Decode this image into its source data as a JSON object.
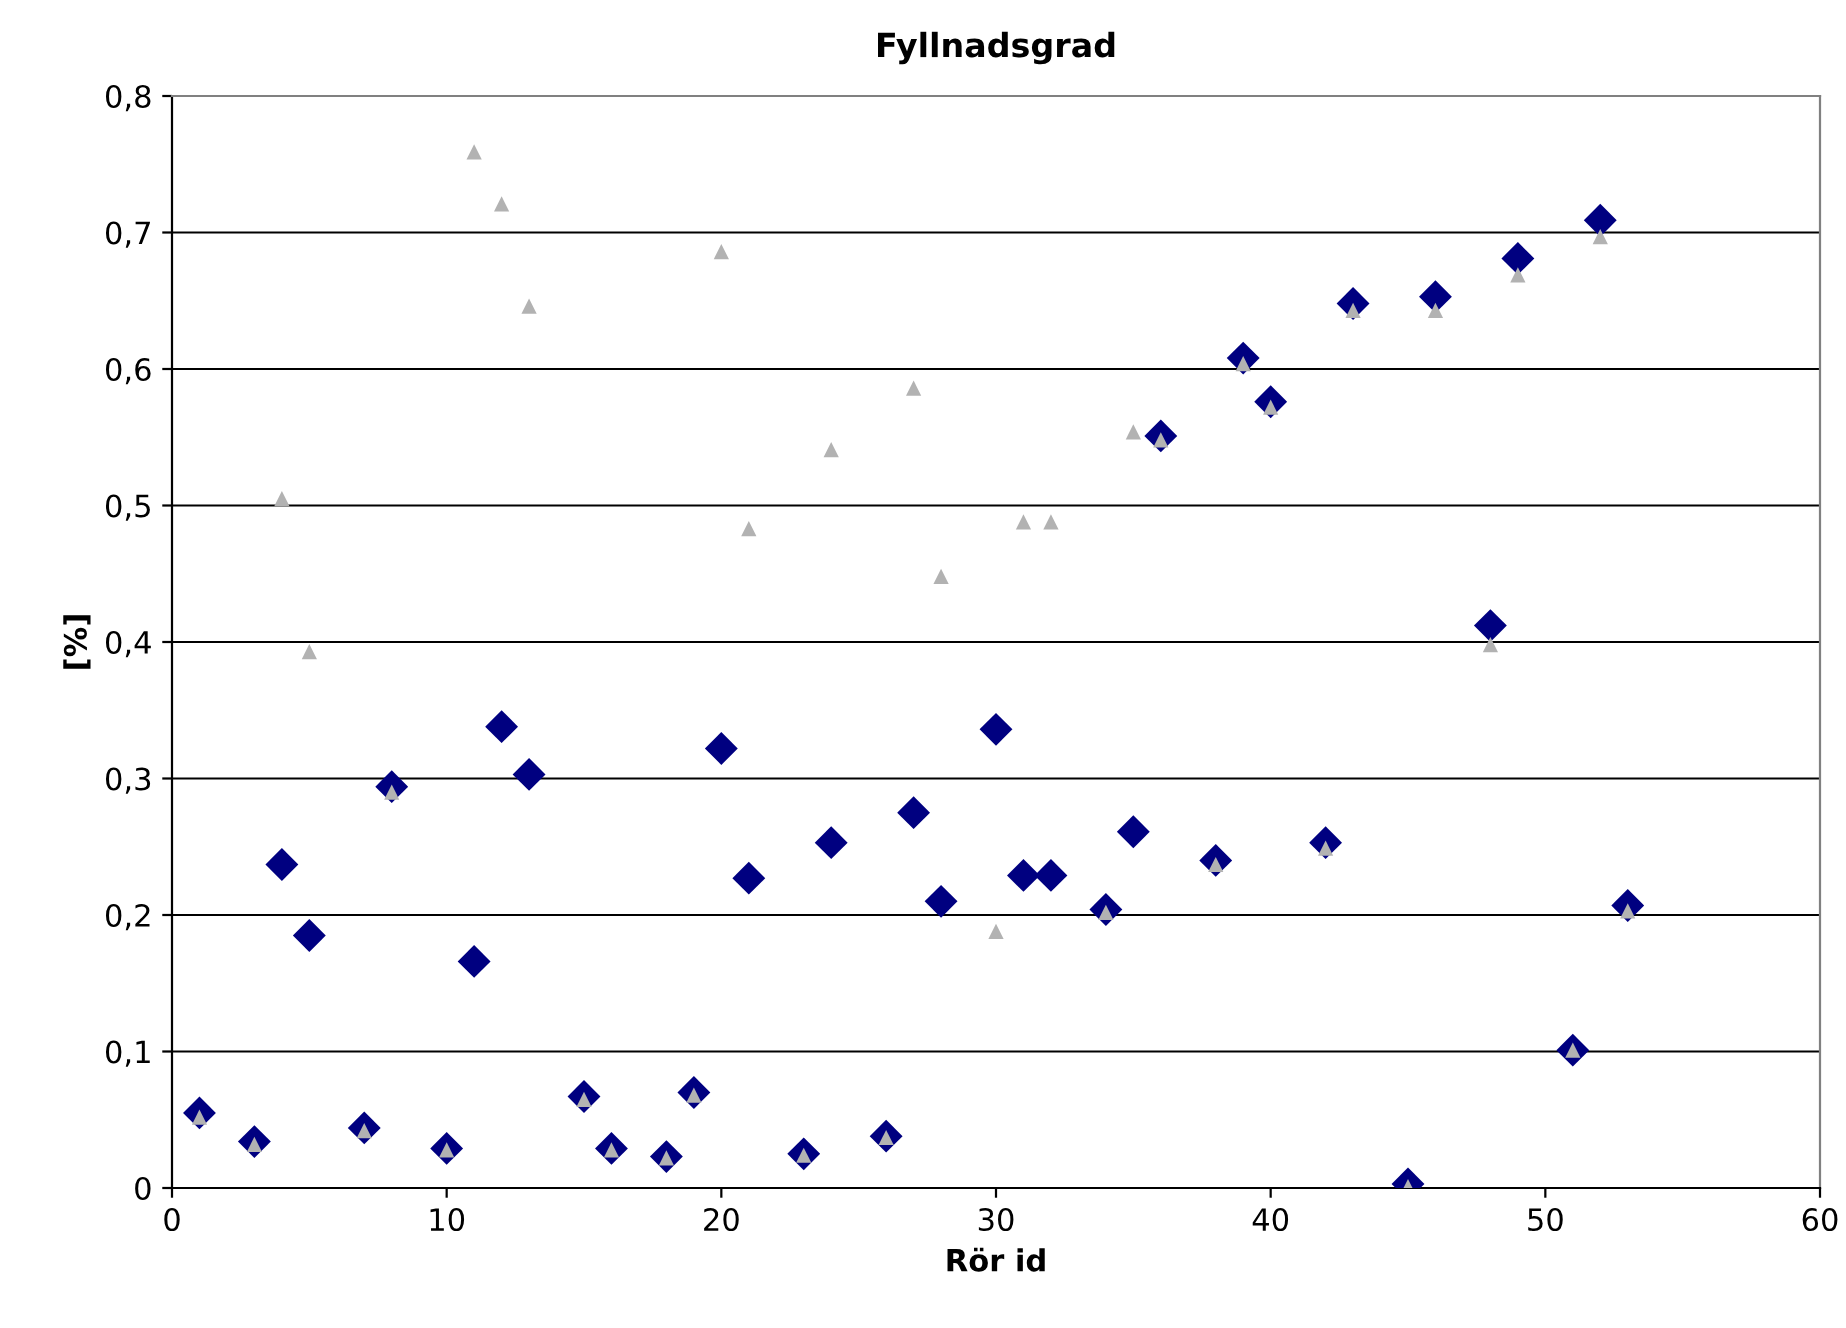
{
  "chart_data": {
    "type": "scatter",
    "title": "Fyllnadsgrad",
    "xlabel": "Rör id",
    "ylabel": "[%]",
    "xlim": [
      0,
      60
    ],
    "xticks": [
      0,
      10,
      20,
      30,
      40,
      50,
      60
    ],
    "ylim": [
      0,
      0.8
    ],
    "yticks": [
      {
        "value": 0,
        "label": "0"
      },
      {
        "value": 0.1,
        "label": "0,1"
      },
      {
        "value": 0.2,
        "label": "0,2"
      },
      {
        "value": 0.3,
        "label": "0,3"
      },
      {
        "value": 0.4,
        "label": "0,4"
      },
      {
        "value": 0.5,
        "label": "0,5"
      },
      {
        "value": 0.6,
        "label": "0,6"
      },
      {
        "value": 0.7,
        "label": "0,7"
      },
      {
        "value": 0.8,
        "label": "0,8"
      }
    ],
    "grid": "y",
    "legend": false,
    "x": [
      1,
      3,
      4,
      5,
      7,
      8,
      10,
      11,
      12,
      13,
      15,
      16,
      18,
      19,
      20,
      21,
      23,
      24,
      26,
      27,
      28,
      30,
      31,
      32,
      34,
      35,
      36,
      38,
      39,
      40,
      42,
      43,
      45,
      46,
      48,
      49,
      51,
      52,
      53
    ],
    "series": [
      {
        "color": "#000080",
        "marker": "diamond",
        "values": [
          0.055,
          0.034,
          0.237,
          0.185,
          0.044,
          0.294,
          0.029,
          0.166,
          0.338,
          0.303,
          0.067,
          0.029,
          0.023,
          0.07,
          0.322,
          0.227,
          0.025,
          0.253,
          0.038,
          0.275,
          0.21,
          0.336,
          0.229,
          0.229,
          0.204,
          0.261,
          0.551,
          0.24,
          0.608,
          0.576,
          0.253,
          0.648,
          0.003,
          0.653,
          0.412,
          0.681,
          0.101,
          0.709,
          0.207
        ]
      },
      {
        "color": "#b2b2b2",
        "marker": "triangle",
        "values": [
          0.052,
          0.032,
          0.505,
          0.393,
          0.042,
          0.29,
          0.028,
          0.759,
          0.721,
          0.646,
          0.065,
          0.028,
          0.022,
          0.068,
          0.686,
          0.483,
          0.024,
          0.541,
          0.037,
          0.586,
          0.448,
          0.188,
          0.488,
          0.488,
          0.202,
          0.554,
          0.548,
          0.237,
          0.604,
          0.572,
          0.249,
          0.643,
          0.001,
          0.643,
          0.398,
          0.669,
          0.101,
          0.697,
          0.203
        ]
      }
    ]
  }
}
